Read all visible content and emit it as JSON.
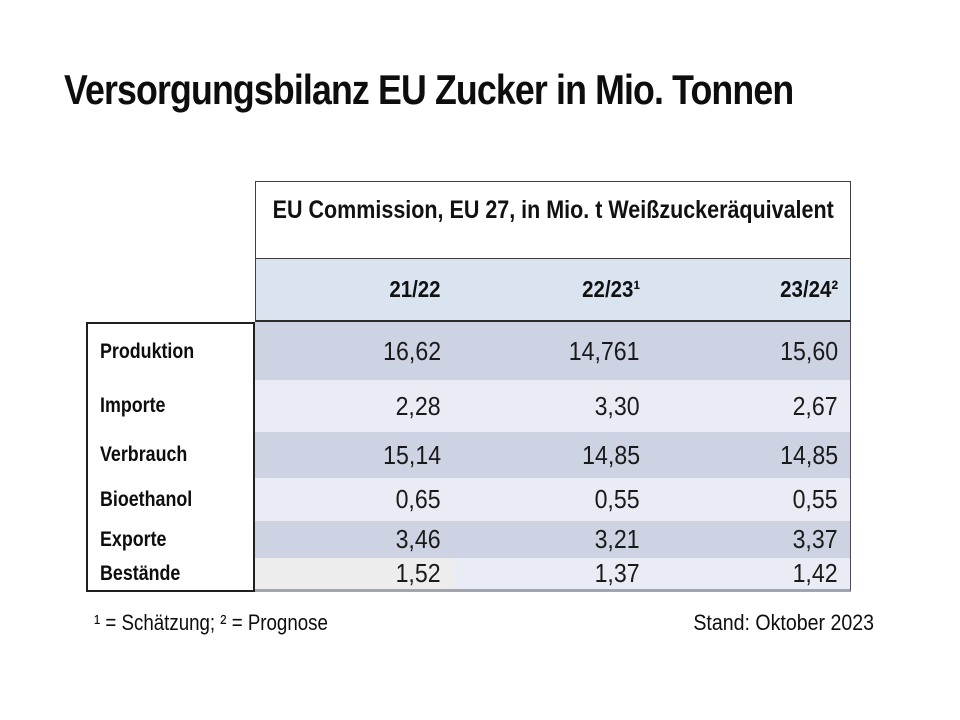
{
  "page": {
    "title": "Versorgungsbilanz EU Zucker in Mio. Tonnen"
  },
  "table": {
    "header": "EU Commission, EU 27, in Mio. t Weißzuckeräquivalent",
    "columns": [
      "21/22",
      "22/23¹",
      "23/24²"
    ],
    "rows": [
      {
        "label": "Produktion",
        "values": [
          "16,62",
          "14,761",
          "15,60"
        ]
      },
      {
        "label": "Importe",
        "values": [
          "2,28",
          "3,30",
          "2,67"
        ]
      },
      {
        "label": "Verbrauch",
        "values": [
          "15,14",
          "14,85",
          "14,85"
        ]
      },
      {
        "label": "Bioethanol",
        "values": [
          "0,65",
          "0,55",
          "0,55"
        ]
      },
      {
        "label": "Exporte",
        "values": [
          "3,46",
          "3,21",
          "3,37"
        ]
      },
      {
        "label": "Bestände",
        "values": [
          "1,52",
          "1,37",
          "1,42"
        ]
      }
    ]
  },
  "footer": {
    "left": "¹ = Schätzung; ² = Prognose",
    "right": "Stand: Oktober 2023"
  },
  "colors": {
    "dark_row": "#cdd3e3",
    "light_row": "#e9ecf4",
    "header_row": "#dae4f0",
    "gray_cell": "#ededee"
  }
}
